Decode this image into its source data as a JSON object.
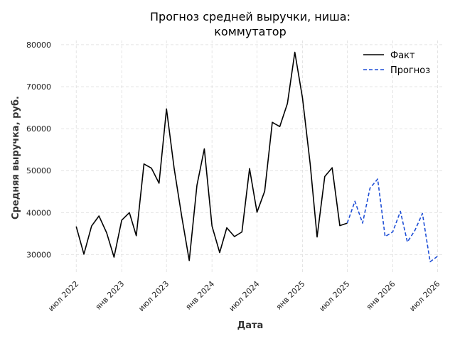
{
  "chart_data": {
    "type": "line",
    "title_lines": [
      "Прогноз средней выручки, ниша:",
      "коммутатор"
    ],
    "xlabel": "Дата",
    "ylabel": "Средняя выручка, руб.",
    "ylim": [
      25500,
      81000
    ],
    "yticks": [
      30000,
      40000,
      50000,
      60000,
      70000,
      80000
    ],
    "ytick_labels": [
      "30000",
      "40000",
      "50000",
      "60000",
      "70000",
      "80000"
    ],
    "xlim": [
      "2022-05-01",
      "2026-07-20"
    ],
    "xticks": [
      "2022-07-01",
      "2023-01-01",
      "2023-07-01",
      "2024-01-01",
      "2024-07-01",
      "2025-01-01",
      "2025-07-01",
      "2026-01-01",
      "2026-07-01"
    ],
    "xtick_labels": [
      "июл 2022",
      "янв 2023",
      "июл 2023",
      "янв 2024",
      "июл 2024",
      "янв 2025",
      "июл 2025",
      "янв 2026",
      "июл 2026"
    ],
    "grid": true,
    "legend_position": "top-right",
    "series": [
      {
        "name": "Факт",
        "color": "#000000",
        "style": "solid",
        "x": [
          "2022-07-01",
          "2022-08-01",
          "2022-09-01",
          "2022-10-01",
          "2022-11-01",
          "2022-12-01",
          "2023-01-01",
          "2023-02-01",
          "2023-03-01",
          "2023-04-01",
          "2023-05-01",
          "2023-06-01",
          "2023-07-01",
          "2023-08-01",
          "2023-09-01",
          "2023-10-01",
          "2023-11-01",
          "2023-12-01",
          "2024-01-01",
          "2024-02-01",
          "2024-03-01",
          "2024-04-01",
          "2024-05-01",
          "2024-06-01",
          "2024-07-01",
          "2024-08-01",
          "2024-09-01",
          "2024-10-01",
          "2024-11-01",
          "2024-12-01",
          "2025-01-01",
          "2025-02-01",
          "2025-03-01",
          "2025-04-01",
          "2025-05-01",
          "2025-06-01",
          "2025-07-01"
        ],
        "y": [
          36700,
          30100,
          36800,
          39200,
          35200,
          29400,
          38200,
          40000,
          34500,
          51600,
          50600,
          47000,
          64700,
          50500,
          39000,
          28600,
          46500,
          55200,
          36800,
          30500,
          36400,
          34300,
          35400,
          50500,
          40100,
          45100,
          61500,
          60500,
          66000,
          78200,
          67300,
          51600,
          34200,
          48600,
          50700,
          36900,
          37500
        ]
      },
      {
        "name": "Прогноз",
        "color": "#1f4fd6",
        "style": "dashed",
        "x": [
          "2025-07-01",
          "2025-08-01",
          "2025-09-01",
          "2025-10-01",
          "2025-11-01",
          "2025-12-01",
          "2026-01-01",
          "2026-02-01",
          "2026-03-01",
          "2026-04-01",
          "2026-05-01",
          "2026-06-01",
          "2026-07-01"
        ],
        "y": [
          37500,
          42700,
          37500,
          45800,
          48000,
          34300,
          35400,
          40300,
          33000,
          35800,
          39800,
          28300,
          29600
        ]
      }
    ]
  }
}
